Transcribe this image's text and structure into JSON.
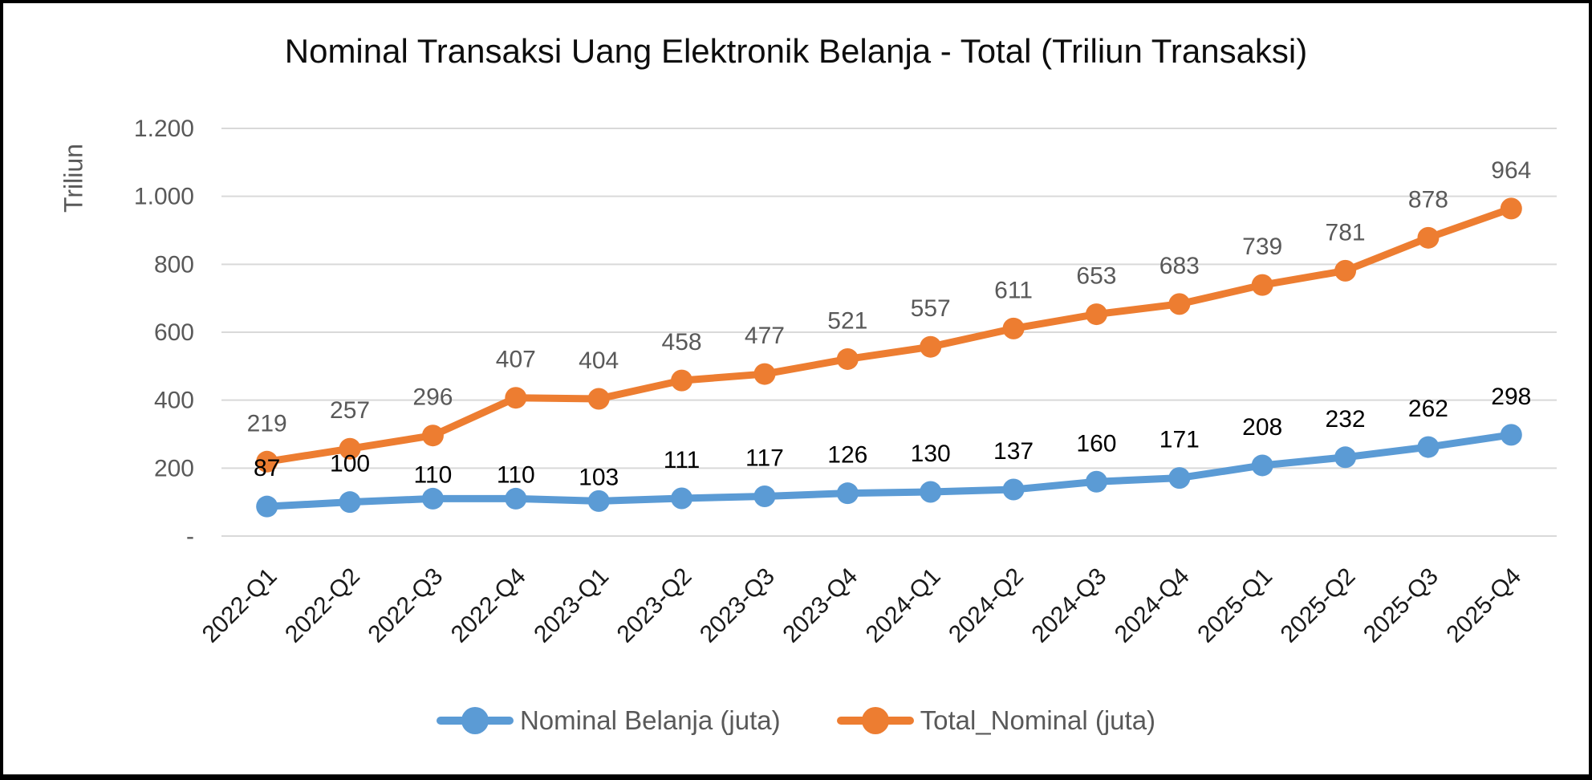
{
  "title": "Nominal Transaksi Uang Elektronik Belanja - Total (Triliun Transaksi)",
  "y_axis": {
    "title": "Triliun",
    "ticks": [
      {
        "value": 1200,
        "label": "1.200"
      },
      {
        "value": 1000,
        "label": "1.000"
      },
      {
        "value": 800,
        "label": "800"
      },
      {
        "value": 600,
        "label": "600"
      },
      {
        "value": 400,
        "label": "400"
      },
      {
        "value": 200,
        "label": "200"
      },
      {
        "value": 0,
        "label": "-"
      }
    ]
  },
  "chart_data": {
    "type": "line",
    "title": "Nominal Transaksi Uang Elektronik Belanja - Total (Triliun Transaksi)",
    "xlabel": "",
    "ylabel": "Triliun",
    "ylim": [
      0,
      1200
    ],
    "grid": true,
    "legend_position": "bottom",
    "categories": [
      "2022-Q1",
      "2022-Q2",
      "2022-Q3",
      "2022-Q4",
      "2023-Q1",
      "2023-Q2",
      "2023-Q3",
      "2023-Q4",
      "2024-Q1",
      "2024-Q2",
      "2024-Q3",
      "2024-Q4",
      "2025-Q1",
      "2025-Q2",
      "2025-Q3",
      "2025-Q4"
    ],
    "series": [
      {
        "name": "Nominal Belanja (juta)",
        "color": "#5B9BD5",
        "label_color": "#000000",
        "values": [
          87,
          100,
          110,
          110,
          103,
          111,
          117,
          126,
          130,
          137,
          160,
          171,
          208,
          232,
          262,
          298
        ]
      },
      {
        "name": "Total_Nominal (juta)",
        "color": "#ED7D31",
        "label_color": "#595959",
        "values": [
          219,
          257,
          296,
          407,
          404,
          458,
          477,
          521,
          557,
          611,
          653,
          683,
          739,
          781,
          878,
          964
        ]
      }
    ]
  },
  "colors": {
    "gridline": "#D9D9D9",
    "axis_text": "#595959",
    "x_axis_text": "#1A1A1A",
    "title_text": "#0D0D0D",
    "border": "#000000",
    "background": "#FFFFFF"
  }
}
